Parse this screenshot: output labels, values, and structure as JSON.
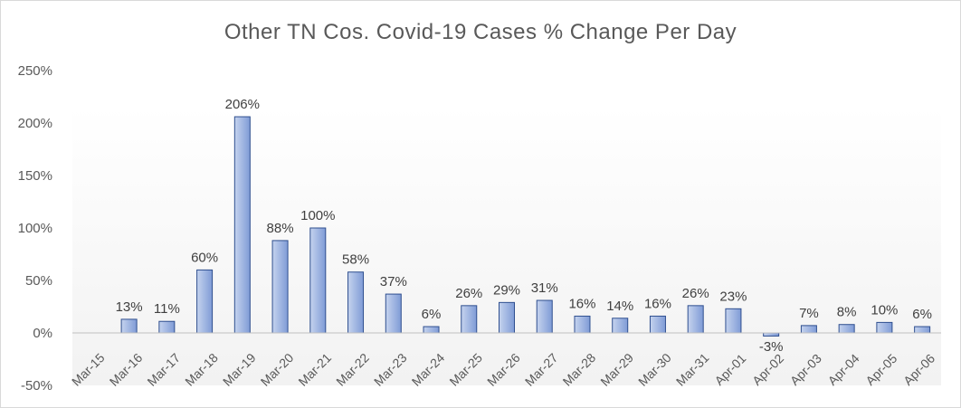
{
  "chart_data": {
    "type": "bar",
    "title": "Other TN Cos. Covid-19 Cases % Change Per Day",
    "xlabel": "",
    "ylabel": "",
    "categories": [
      "Mar-15",
      "Mar-16",
      "Mar-17",
      "Mar-18",
      "Mar-19",
      "Mar-20",
      "Mar-21",
      "Mar-22",
      "Mar-23",
      "Mar-24",
      "Mar-25",
      "Mar-26",
      "Mar-27",
      "Mar-28",
      "Mar-29",
      "Mar-30",
      "Mar-31",
      "Apr-01",
      "Apr-02",
      "Apr-03",
      "Apr-04",
      "Apr-05",
      "Apr-06"
    ],
    "values": [
      null,
      13,
      11,
      60,
      206,
      88,
      100,
      58,
      37,
      6,
      26,
      29,
      31,
      16,
      14,
      16,
      26,
      23,
      -3,
      7,
      8,
      10,
      6
    ],
    "data_labels": [
      "",
      "13%",
      "11%",
      "60%",
      "206%",
      "88%",
      "100%",
      "58%",
      "37%",
      "6%",
      "26%",
      "29%",
      "31%",
      "16%",
      "14%",
      "16%",
      "26%",
      "23%",
      "-3%",
      "7%",
      "8%",
      "10%",
      "6%"
    ],
    "ylim": [
      -50,
      250
    ],
    "ytick_values": [
      -50,
      0,
      50,
      100,
      150,
      200,
      250
    ],
    "ytick_labels": [
      "-50%",
      "0%",
      "50%",
      "100%",
      "150%",
      "200%",
      "250%"
    ],
    "grid": false,
    "legend": "none",
    "colors": {
      "bar_fill_light": "#c5d3ee",
      "bar_fill_dark": "#7f9bd6",
      "bar_stroke": "#2f4f8f",
      "axis": "#bfbfbf",
      "plot_bg": "#f7f7f7"
    }
  }
}
